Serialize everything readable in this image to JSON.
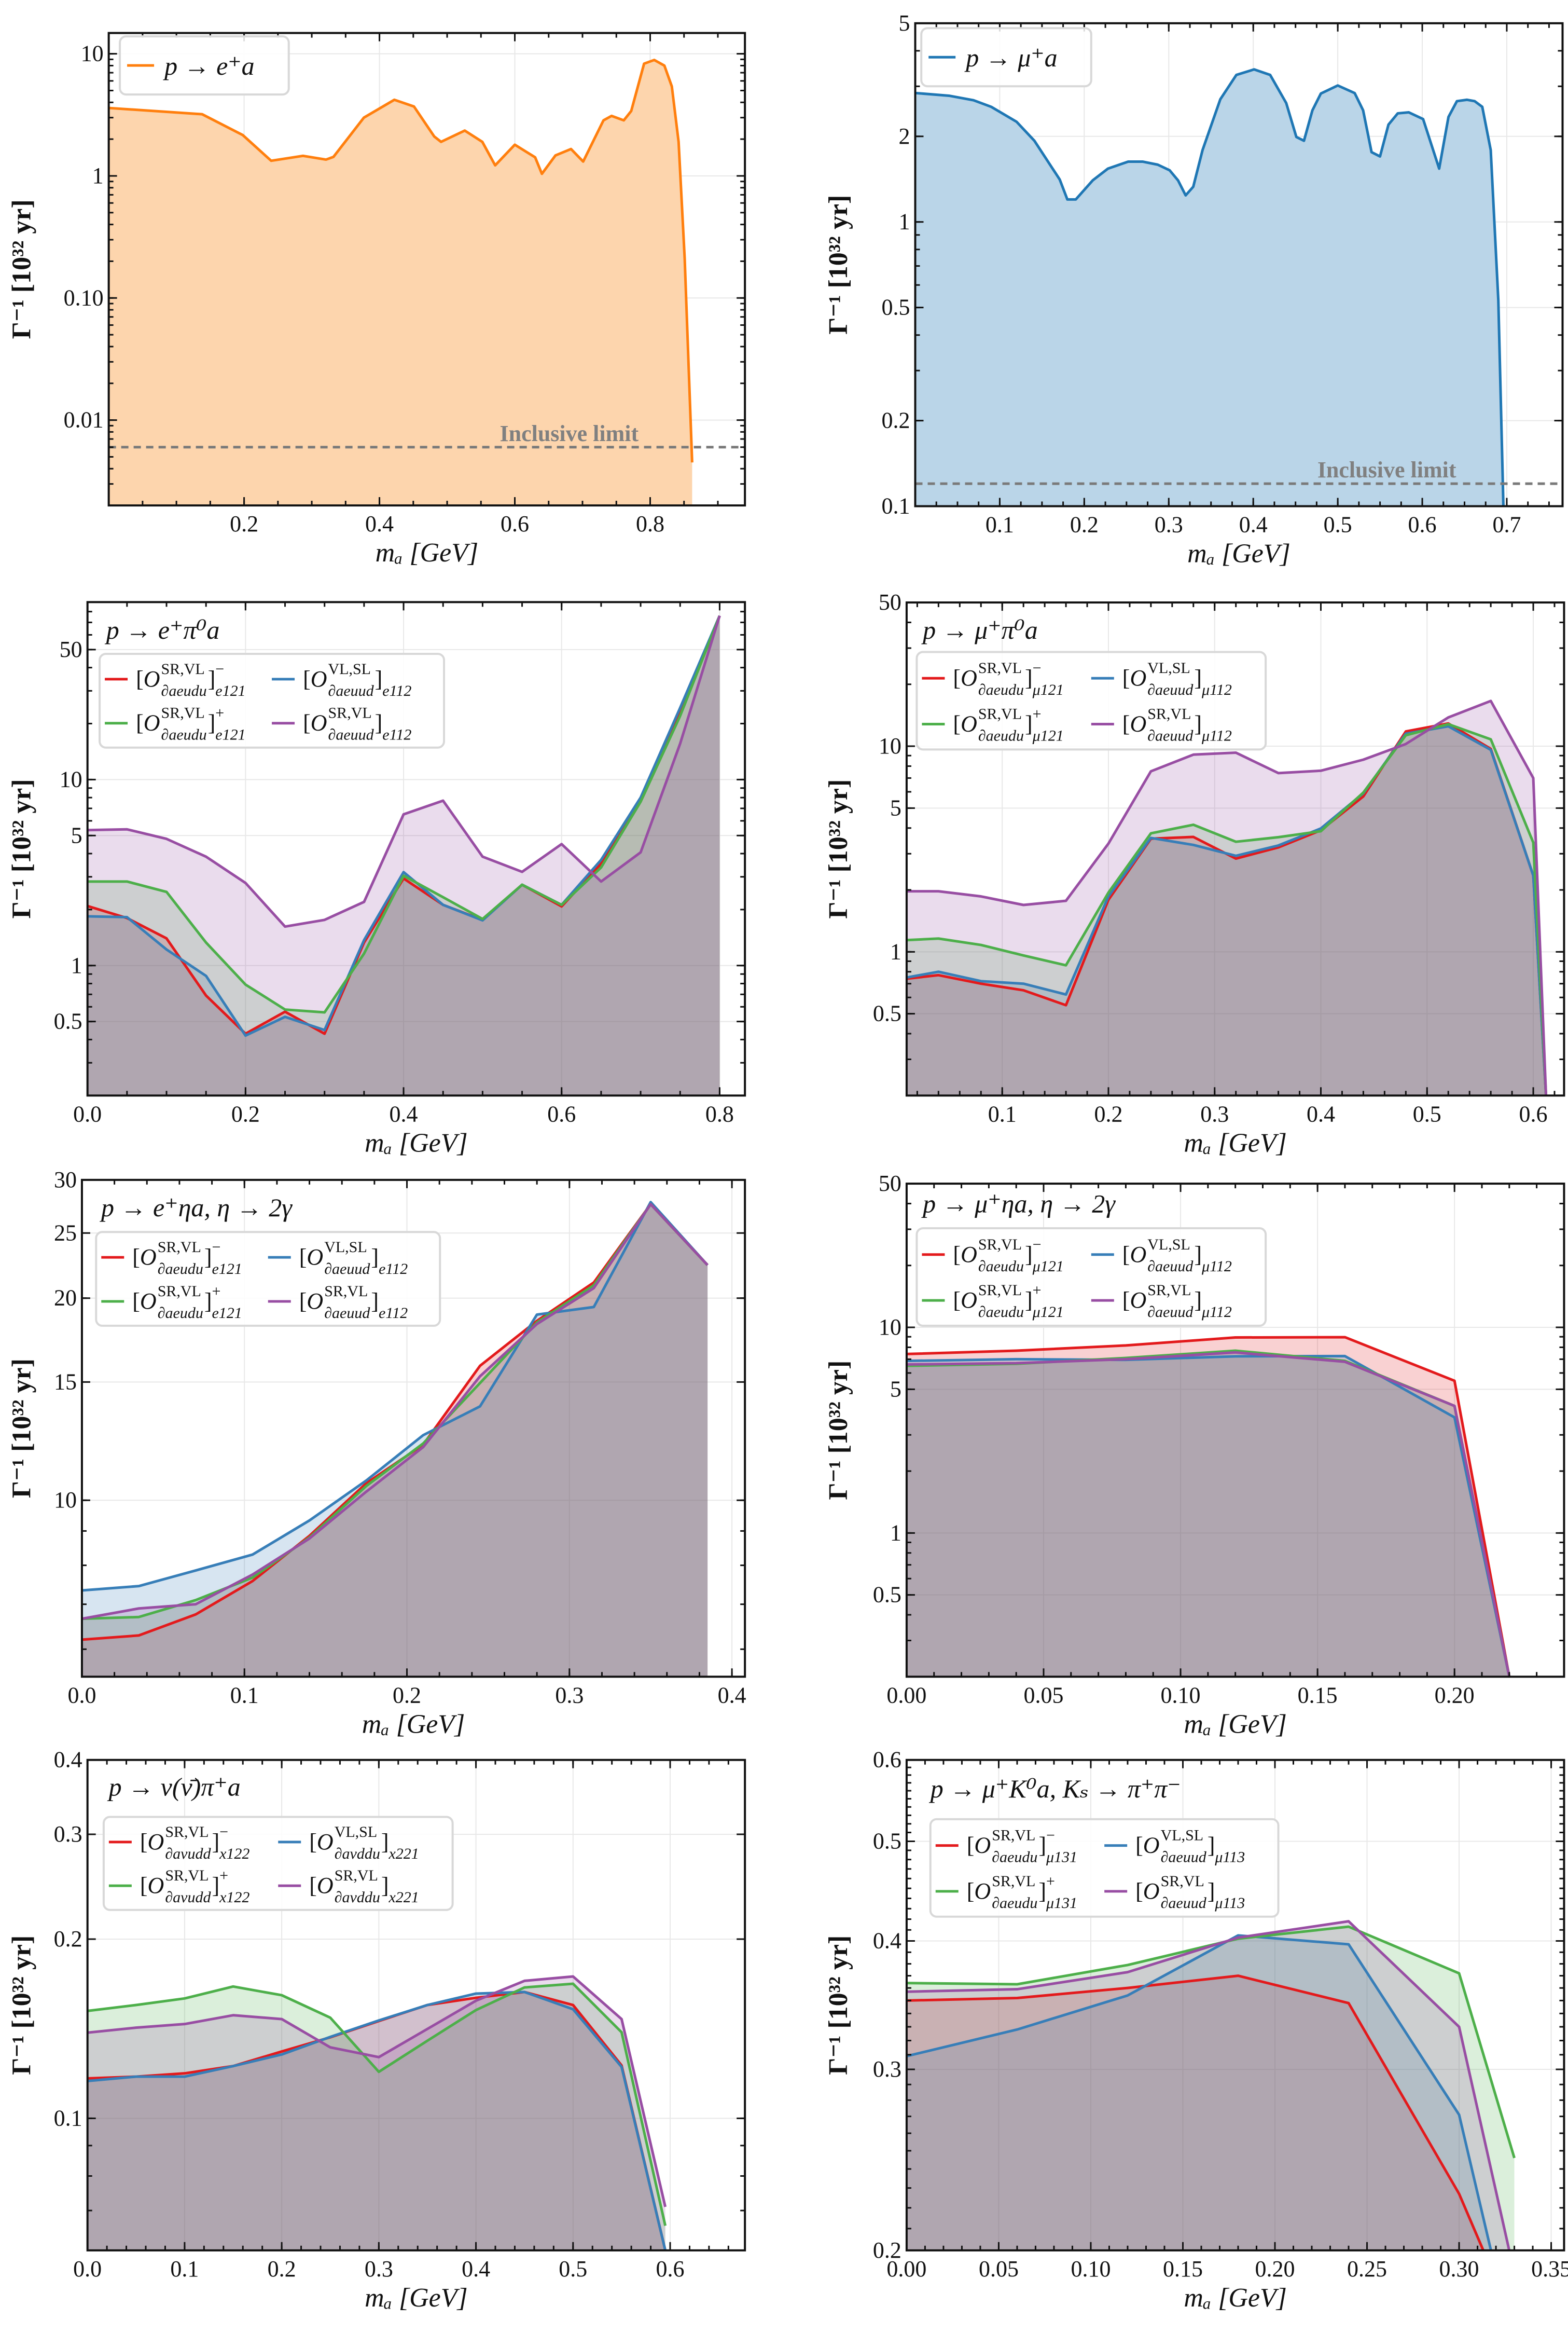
{
  "chart_data": [
    {
      "type": "area",
      "legend_title": "p → e⁺a",
      "xlabel": "mₐ [GeV]",
      "ylabel": "Γ⁻¹ [10³² yr]",
      "yscale": "log",
      "xlim": [
        0,
        0.94
      ],
      "ylim": [
        0.002,
        14.8
      ],
      "grid": true,
      "legend_position": "top-left",
      "xticks": [
        "0.2",
        "0.4",
        "0.6",
        "0.8"
      ],
      "yticks": [
        "10",
        "1",
        "0.10",
        "0.01"
      ],
      "inclusive_limit": {
        "label": "Inclusive limit",
        "value": 0.006
      },
      "series": [
        {
          "name": "p → e⁺a",
          "color": "#ff7f0e",
          "fill": "#fdd5ad",
          "x": [
            0,
            0.138,
            0.198,
            0.24,
            0.287,
            0.321,
            0.332,
            0.377,
            0.422,
            0.451,
            0.481,
            0.491,
            0.526,
            0.552,
            0.571,
            0.6,
            0.63,
            0.64,
            0.66,
            0.683,
            0.701,
            0.731,
            0.743,
            0.761,
            0.772,
            0.791,
            0.806,
            0.821,
            0.832,
            0.842,
            0.851,
            0.862
          ],
          "y": [
            3.6,
            3.2,
            2.16,
            1.33,
            1.46,
            1.36,
            1.43,
            3.0,
            4.2,
            3.7,
            2.1,
            1.9,
            2.35,
            1.9,
            1.22,
            1.8,
            1.42,
            1.04,
            1.47,
            1.66,
            1.31,
            2.85,
            3.1,
            2.85,
            3.4,
            8.3,
            8.9,
            8.0,
            5.4,
            1.9,
            0.21,
            0.0045
          ]
        }
      ]
    },
    {
      "type": "area",
      "legend_title": "p → μ⁺a",
      "xlabel": "mₐ [GeV]",
      "ylabel": "Γ⁻¹ [10³² yr]",
      "yscale": "log",
      "xlim": [
        0,
        0.766
      ],
      "ylim": [
        0.1,
        5
      ],
      "grid": true,
      "legend_position": "top-left",
      "xticks": [
        "0.1",
        "0.2",
        "0.3",
        "0.4",
        "0.5",
        "0.6",
        "0.7"
      ],
      "yticks": [
        "5",
        "2",
        "1",
        "0.5",
        "0.2",
        "0.1"
      ],
      "inclusive_limit": {
        "label": "Inclusive limit",
        "value": 0.12
      },
      "series": [
        {
          "name": "p → μ⁺a",
          "color": "#1f77b4",
          "fill": "#bad5e8",
          "x": [
            0.001,
            0.04,
            0.069,
            0.09,
            0.12,
            0.141,
            0.171,
            0.18,
            0.19,
            0.21,
            0.228,
            0.252,
            0.269,
            0.287,
            0.301,
            0.311,
            0.32,
            0.329,
            0.34,
            0.361,
            0.38,
            0.401,
            0.42,
            0.439,
            0.451,
            0.46,
            0.47,
            0.48,
            0.5,
            0.52,
            0.53,
            0.54,
            0.55,
            0.56,
            0.571,
            0.584,
            0.601,
            0.62,
            0.631,
            0.641,
            0.653,
            0.662,
            0.671,
            0.681,
            0.69,
            0.696
          ],
          "y": [
            2.84,
            2.78,
            2.68,
            2.54,
            2.25,
            1.93,
            1.41,
            1.2,
            1.2,
            1.4,
            1.54,
            1.63,
            1.63,
            1.59,
            1.52,
            1.4,
            1.24,
            1.33,
            1.79,
            2.7,
            3.29,
            3.44,
            3.29,
            2.62,
            1.99,
            1.93,
            2.47,
            2.83,
            3.02,
            2.84,
            2.47,
            1.76,
            1.7,
            2.2,
            2.41,
            2.43,
            2.3,
            1.54,
            2.34,
            2.66,
            2.69,
            2.66,
            2.54,
            1.79,
            0.53,
            0.1
          ]
        }
      ]
    },
    {
      "type": "area",
      "title": "p → e⁺π⁰a",
      "xlabel": "mₐ [GeV]",
      "ylabel": "Γ⁻¹ [10³² yr]",
      "yscale": "log",
      "xlim": [
        0,
        0.832
      ],
      "ylim": [
        0.2,
        90
      ],
      "grid": true,
      "legend_position": "top-left",
      "xticks": [
        "0.0",
        "0.2",
        "0.4",
        "0.6",
        "0.8"
      ],
      "yticks": [
        "50",
        "10",
        "5",
        "1",
        "0.5"
      ],
      "x": [
        0,
        0.05,
        0.1,
        0.15,
        0.2,
        0.25,
        0.3,
        0.35,
        0.4,
        0.45,
        0.5,
        0.55,
        0.6,
        0.65,
        0.7,
        0.75,
        0.8
      ],
      "series": [
        {
          "label": {
            "op": "SR,VL",
            "field": "∂aeudu",
            "sign": "−",
            "idx": "e121"
          },
          "color": "#e31a1c",
          "y": [
            2.09,
            1.8,
            1.4,
            0.69,
            0.43,
            0.565,
            0.43,
            1.33,
            2.94,
            2.12,
            1.76,
            2.72,
            2.08,
            3.53,
            7.8,
            23.7,
            76
          ]
        },
        {
          "label": {
            "op": "VL,SL",
            "field": "∂aeuud",
            "sign": "",
            "idx": "e112"
          },
          "color": "#377eb8",
          "y": [
            1.84,
            1.82,
            1.22,
            0.88,
            0.42,
            0.53,
            0.45,
            1.37,
            3.18,
            2.12,
            1.75,
            2.72,
            2.12,
            3.7,
            8.0,
            24.3,
            76
          ]
        },
        {
          "label": {
            "op": "SR,VL",
            "field": "∂aeudu",
            "sign": "+",
            "idx": "e121"
          },
          "color": "#4daf4a",
          "y": [
            2.83,
            2.83,
            2.49,
            1.33,
            0.79,
            0.58,
            0.56,
            1.16,
            3.04,
            2.33,
            1.78,
            2.72,
            2.12,
            3.37,
            7.6,
            22,
            76
          ]
        },
        {
          "label": {
            "op": "SR,VL",
            "field": "∂aeuud",
            "sign": "",
            "idx": "e112"
          },
          "color": "#984ea3",
          "y": [
            5.35,
            5.4,
            4.8,
            3.85,
            2.78,
            1.62,
            1.76,
            2.2,
            6.5,
            7.7,
            3.85,
            3.19,
            4.5,
            2.83,
            4.06,
            15.6,
            76
          ]
        }
      ]
    },
    {
      "type": "area",
      "title": "p → μ⁺π⁰a",
      "xlabel": "mₐ [GeV]",
      "ylabel": "Γ⁻¹ [10³² yr]",
      "yscale": "log",
      "xlim": [
        0.01,
        0.629
      ],
      "ylim": [
        0.2,
        50
      ],
      "grid": true,
      "legend_position": "top-left",
      "xticks": [
        "0.1",
        "0.2",
        "0.3",
        "0.4",
        "0.5",
        "0.6"
      ],
      "yticks": [
        "50",
        "10",
        "5",
        "1",
        "0.5"
      ],
      "x": [
        0.01,
        0.04,
        0.08,
        0.12,
        0.16,
        0.2,
        0.24,
        0.28,
        0.32,
        0.36,
        0.4,
        0.44,
        0.48,
        0.52,
        0.56,
        0.6,
        0.612
      ],
      "series": [
        {
          "label": {
            "op": "SR,VL",
            "field": "∂aeudu",
            "sign": "−",
            "idx": "μ121"
          },
          "color": "#e31a1c",
          "y": [
            0.74,
            0.77,
            0.7,
            0.65,
            0.55,
            1.79,
            3.55,
            3.62,
            2.84,
            3.22,
            3.9,
            5.7,
            11.8,
            12.9,
            9.7,
            2.35,
            0.2
          ]
        },
        {
          "label": {
            "op": "VL,SL",
            "field": "∂aeuud",
            "sign": "",
            "idx": "μ112"
          },
          "color": "#377eb8",
          "y": [
            0.75,
            0.8,
            0.72,
            0.7,
            0.62,
            1.86,
            3.58,
            3.31,
            2.93,
            3.29,
            3.98,
            5.9,
            11.5,
            12.5,
            9.6,
            2.35,
            0.2
          ]
        },
        {
          "label": {
            "op": "SR,VL",
            "field": "∂aeudu",
            "sign": "+",
            "idx": "μ121"
          },
          "color": "#4daf4a",
          "y": [
            1.14,
            1.16,
            1.08,
            0.96,
            0.86,
            1.94,
            3.77,
            4.15,
            3.43,
            3.61,
            3.86,
            5.95,
            11.3,
            12.8,
            10.8,
            3.4,
            0.2
          ]
        },
        {
          "label": {
            "op": "SR,VL",
            "field": "∂aeuud",
            "sign": "",
            "idx": "μ112"
          },
          "color": "#984ea3",
          "y": [
            1.97,
            1.97,
            1.86,
            1.69,
            1.77,
            3.36,
            7.55,
            9.1,
            9.3,
            7.4,
            7.6,
            8.6,
            10.25,
            13.8,
            16.6,
            7.0,
            0.2
          ]
        }
      ]
    },
    {
      "type": "area",
      "title": "p → e⁺ηa, η → 2γ",
      "xlabel": "mₐ [GeV]",
      "ylabel": "Γ⁻¹ [10³² yr]",
      "yscale": "log",
      "xlim": [
        0,
        0.408
      ],
      "ylim": [
        5.46,
        30
      ],
      "grid": true,
      "legend_position": "top-left",
      "xticks": [
        "0.0",
        "0.1",
        "0.2",
        "0.3",
        "0.4"
      ],
      "yticks": [
        "30",
        "25",
        "20",
        "15",
        "10"
      ],
      "x": [
        0,
        0.035,
        0.07,
        0.105,
        0.14,
        0.175,
        0.21,
        0.245,
        0.28,
        0.315,
        0.35,
        0.385
      ],
      "series": [
        {
          "label": {
            "op": "SR,VL",
            "field": "∂aeudu",
            "sign": "−",
            "idx": "e121"
          },
          "color": "#e31a1c",
          "y": [
            6.2,
            6.29,
            6.76,
            7.58,
            8.85,
            10.6,
            12.1,
            15.86,
            18.5,
            21.1,
            27.6,
            22.4
          ]
        },
        {
          "label": {
            "op": "VL,SL",
            "field": "∂aeuud",
            "sign": "",
            "idx": "e112"
          },
          "color": "#377eb8",
          "y": [
            7.34,
            7.45,
            7.86,
            8.3,
            9.33,
            10.7,
            12.5,
            13.8,
            18.9,
            19.4,
            27.8,
            22.4
          ]
        },
        {
          "label": {
            "op": "SR,VL",
            "field": "∂aeudu",
            "sign": "+",
            "idx": "e121"
          },
          "color": "#4daf4a",
          "y": [
            6.66,
            6.7,
            7.1,
            7.67,
            8.8,
            10.5,
            12.15,
            14.95,
            18.4,
            20.9,
            27.6,
            22.4
          ]
        },
        {
          "label": {
            "op": "SR,VL",
            "field": "∂aeuud",
            "sign": "",
            "idx": "e112"
          },
          "color": "#984ea3",
          "y": [
            6.66,
            6.9,
            7.0,
            7.75,
            8.77,
            10.3,
            12.0,
            15.3,
            18.3,
            20.7,
            27.6,
            22.4
          ]
        }
      ]
    },
    {
      "type": "area",
      "title": "p → μ⁺ηa, η → 2γ",
      "xlabel": "mₐ [GeV]",
      "ylabel": "Γ⁻¹ [10³² yr]",
      "yscale": "log",
      "xlim": [
        0,
        0.24
      ],
      "ylim": [
        0.2,
        50
      ],
      "grid": true,
      "legend_position": "top-left",
      "xticks": [
        "0.00",
        "0.05",
        "0.10",
        "0.15",
        "0.20"
      ],
      "yticks": [
        "50",
        "10",
        "5",
        "1",
        "0.5"
      ],
      "x": [
        0,
        0.04,
        0.08,
        0.12,
        0.16,
        0.2,
        0.22
      ],
      "series": [
        {
          "label": {
            "op": "SR,VL",
            "field": "∂aeudu",
            "sign": "−",
            "idx": "μ121"
          },
          "color": "#e31a1c",
          "y": [
            7.42,
            7.7,
            8.17,
            8.93,
            8.96,
            5.5,
            0.2
          ]
        },
        {
          "label": {
            "op": "VL,SL",
            "field": "∂aeuud",
            "sign": "",
            "idx": "μ112"
          },
          "color": "#377eb8",
          "y": [
            6.87,
            7.0,
            6.95,
            7.23,
            7.25,
            3.65,
            0.2
          ]
        },
        {
          "label": {
            "op": "SR,VL",
            "field": "∂aeudu",
            "sign": "+",
            "idx": "μ121"
          },
          "color": "#4daf4a",
          "y": [
            6.5,
            6.65,
            7.1,
            7.7,
            6.87,
            4.15,
            0.2
          ]
        },
        {
          "label": {
            "op": "SR,VL",
            "field": "∂aeuud",
            "sign": "",
            "idx": "μ112"
          },
          "color": "#984ea3",
          "y": [
            6.6,
            6.7,
            7.0,
            7.55,
            6.8,
            4.15,
            0.2
          ]
        }
      ]
    },
    {
      "type": "area",
      "title": "p → ν(ν̄)π⁺a",
      "xlabel": "mₐ [GeV]",
      "ylabel": "Γ⁻¹ [10³² yr]",
      "yscale": "log",
      "xlim": [
        0,
        0.677
      ],
      "ylim": [
        0.06,
        0.4
      ],
      "grid": true,
      "legend_position": "top-left",
      "xticks": [
        "0.0",
        "0.1",
        "0.2",
        "0.3",
        "0.4",
        "0.5",
        "0.6"
      ],
      "yticks": [
        "0.4",
        "0.3",
        "0.2",
        "0.1"
      ],
      "x": [
        0,
        0.05,
        0.1,
        0.15,
        0.2,
        0.25,
        0.3,
        0.35,
        0.4,
        0.45,
        0.5,
        0.55,
        0.595
      ],
      "series": [
        {
          "label": {
            "op": "SR,VL",
            "field": "∂aνudd",
            "sign": "−",
            "idx": "x122"
          },
          "color": "#e31a1c",
          "y": [
            0.1167,
            0.1175,
            0.119,
            0.1224,
            0.1295,
            0.1368,
            0.1457,
            0.155,
            0.1594,
            0.163,
            0.155,
            0.1227,
            0.06
          ]
        },
        {
          "label": {
            "op": "VL,SL",
            "field": "∂aνddu",
            "sign": "",
            "idx": "x221"
          },
          "color": "#377eb8",
          "y": [
            0.1155,
            0.1175,
            0.1175,
            0.1224,
            0.128,
            0.137,
            0.146,
            0.155,
            0.162,
            0.163,
            0.1525,
            0.122,
            0.06
          ]
        },
        {
          "label": {
            "op": "SR,VL",
            "field": "∂aνudd",
            "sign": "+",
            "idx": "x122"
          },
          "color": "#4daf4a",
          "y": [
            0.1515,
            0.155,
            0.159,
            0.1665,
            0.161,
            0.1476,
            0.1197,
            0.135,
            0.152,
            0.1659,
            0.1683,
            0.1395,
            0.066
          ]
        },
        {
          "label": {
            "op": "SR,VL",
            "field": "∂aνddu",
            "sign": "",
            "idx": "x221"
          },
          "color": "#984ea3",
          "y": [
            0.1393,
            0.142,
            0.144,
            0.149,
            0.1468,
            0.1316,
            0.1267,
            0.1413,
            0.1576,
            0.1702,
            0.1731,
            0.1468,
            0.071
          ]
        }
      ]
    },
    {
      "type": "area",
      "title": "p → μ⁺K⁰a, Kₛ → π⁺π⁻",
      "xlabel": "mₐ [GeV]",
      "ylabel": "Γ⁻¹ [10³² yr]",
      "yscale": "log",
      "xlim": [
        0,
        0.357
      ],
      "ylim": [
        0.2,
        0.6
      ],
      "grid": true,
      "legend_position": "top-left",
      "xticks": [
        "0.00",
        "0.05",
        "0.10",
        "0.15",
        "0.20",
        "0.25",
        "0.30",
        "0.35"
      ],
      "yticks": [
        "0.6",
        "0.5",
        "0.4",
        "0.3",
        "0.2"
      ],
      "x": [
        0,
        0.06,
        0.12,
        0.18,
        0.24,
        0.3,
        0.33
      ],
      "series": [
        {
          "label": {
            "op": "SR,VL",
            "field": "∂aeudu",
            "sign": "−",
            "idx": "μ131"
          },
          "color": "#e31a1c",
          "y": [
            0.35,
            0.352,
            0.36,
            0.37,
            0.348,
            0.227,
            0.17
          ]
        },
        {
          "label": {
            "op": "VL,SL",
            "field": "∂aeuud",
            "sign": "",
            "idx": "μ113"
          },
          "color": "#377eb8",
          "y": [
            0.309,
            0.328,
            0.354,
            0.405,
            0.397,
            0.271,
            0.16
          ]
        },
        {
          "label": {
            "op": "SR,VL",
            "field": "∂aeudu",
            "sign": "+",
            "idx": "μ131"
          },
          "color": "#4daf4a",
          "y": [
            0.364,
            0.363,
            0.379,
            0.402,
            0.413,
            0.372,
            0.246
          ]
        },
        {
          "label": {
            "op": "SR,VL",
            "field": "∂aeuud",
            "sign": "",
            "idx": "μ113"
          },
          "color": "#984ea3",
          "y": [
            0.357,
            0.359,
            0.373,
            0.403,
            0.418,
            0.33,
            0.19
          ]
        }
      ]
    }
  ]
}
